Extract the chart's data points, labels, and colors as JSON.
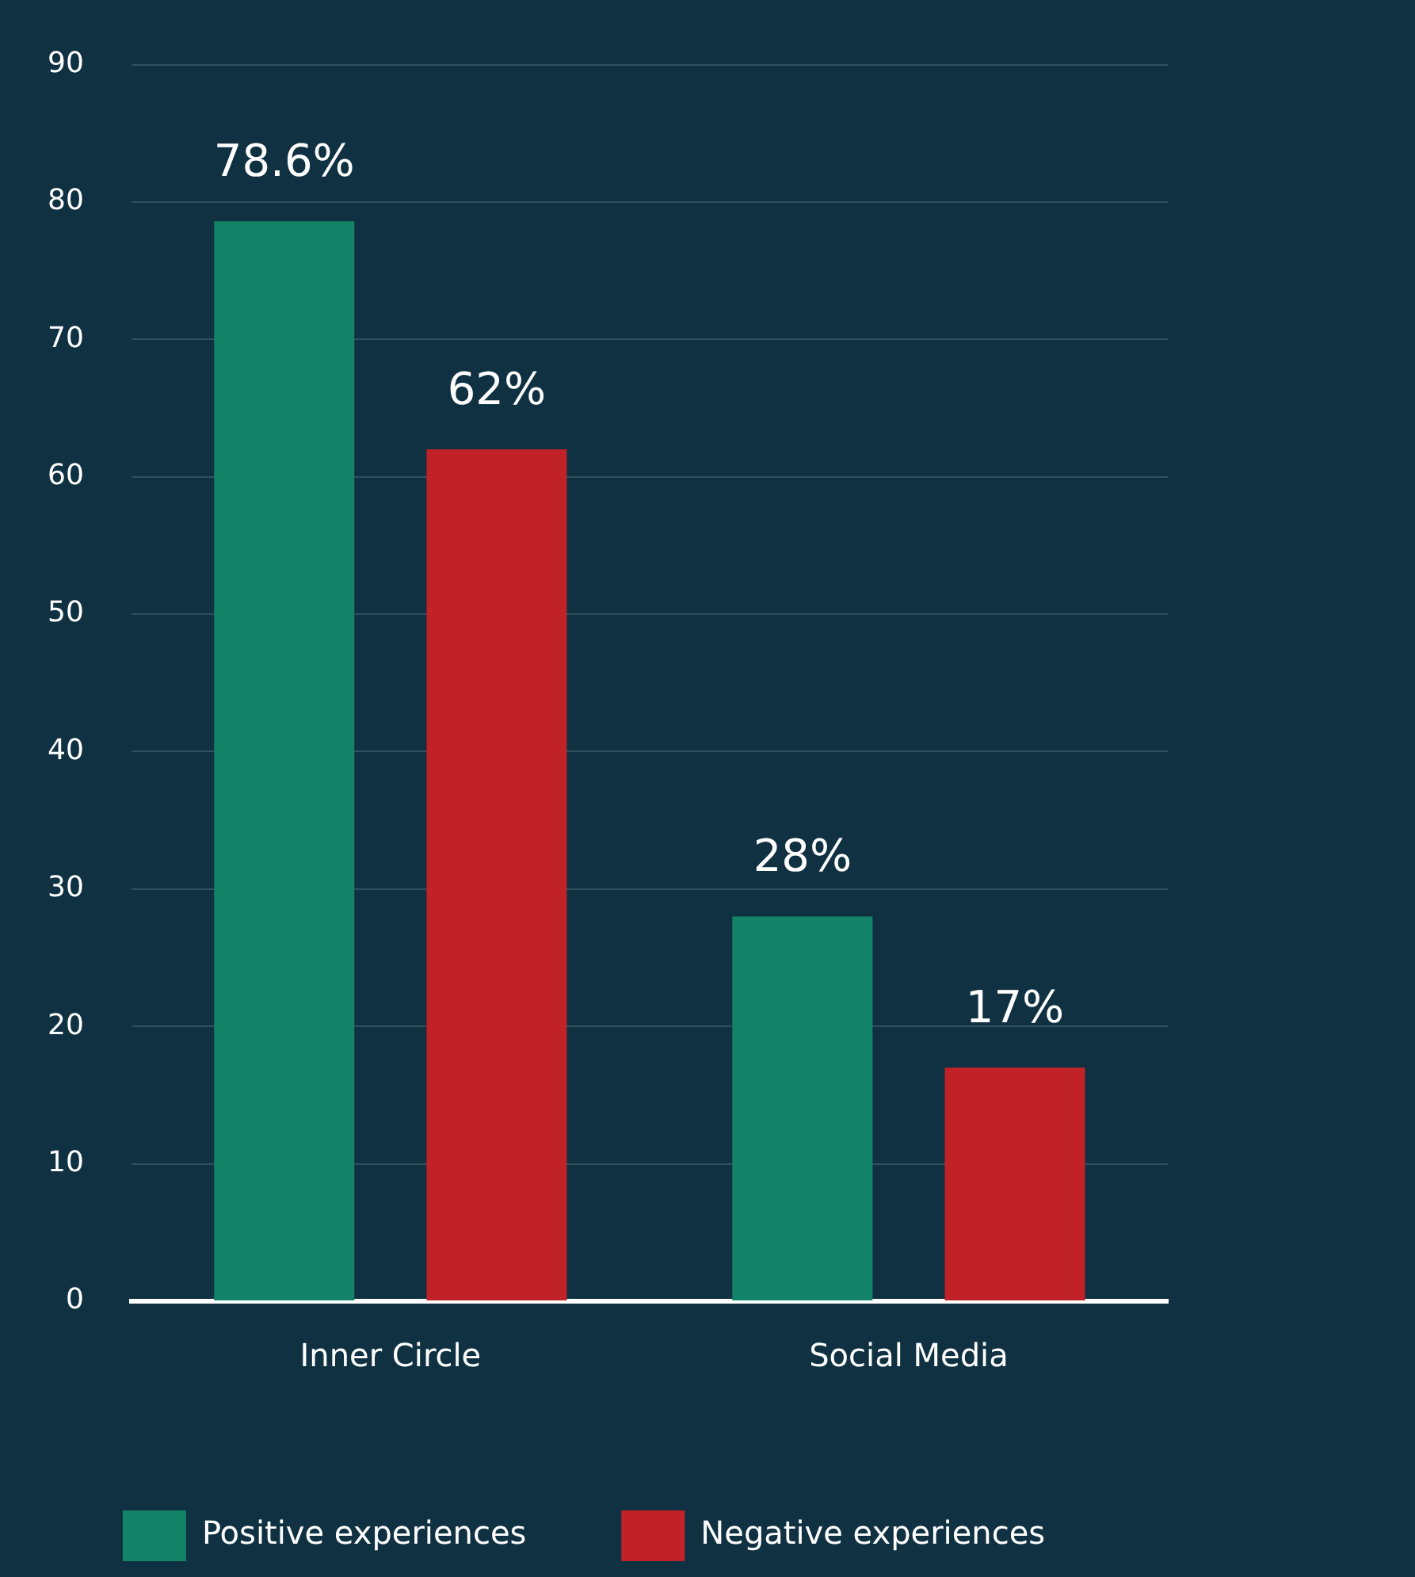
{
  "chart_data": {
    "type": "bar",
    "categories": [
      "Inner Circle",
      "Social Media"
    ],
    "series": [
      {
        "name": "Positive experiences",
        "color": "#138468",
        "values": [
          78.6,
          28
        ],
        "value_labels": [
          "78.6%",
          "28%"
        ]
      },
      {
        "name": "Negative experiences",
        "color": "#c02228",
        "values": [
          62,
          17
        ],
        "value_labels": [
          "62%",
          "17%"
        ]
      }
    ],
    "ylim": [
      0,
      90
    ],
    "yticks": [
      0,
      10,
      20,
      30,
      40,
      50,
      60,
      70,
      80,
      90
    ],
    "grid": "y",
    "legend": "bottom"
  }
}
